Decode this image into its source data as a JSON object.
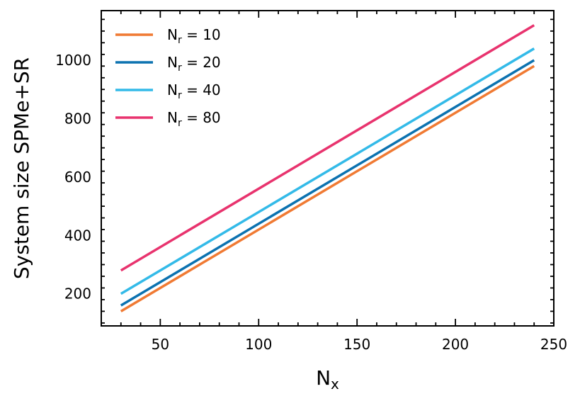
{
  "chart_data": {
    "type": "line",
    "xlabel": "N",
    "xlabel_sub": "x",
    "ylabel": "System size SPMe+SR",
    "xlim": [
      20,
      250
    ],
    "ylim": [
      90,
      1170
    ],
    "x_ticks": [
      50,
      100,
      150,
      200,
      250
    ],
    "y_ticks": [
      200,
      400,
      600,
      800,
      1000
    ],
    "x_tick_labels": [
      "50",
      "100",
      "150",
      "200",
      "250"
    ],
    "y_tick_labels": [
      "200",
      "400",
      "600",
      "800",
      "1000"
    ],
    "grid": false,
    "legend_position": "top-left",
    "series": [
      {
        "name_main": "N",
        "name_sub": "r",
        "name_rest": " = 10",
        "color": "#f07a33",
        "x": [
          30,
          240
        ],
        "y": [
          140,
          980
        ]
      },
      {
        "name_main": "N",
        "name_sub": "r",
        "name_rest": " = 20",
        "color": "#0b72b0",
        "x": [
          30,
          240
        ],
        "y": [
          160,
          1000
        ]
      },
      {
        "name_main": "N",
        "name_sub": "r",
        "name_rest": " = 40",
        "color": "#33bae8",
        "x": [
          30,
          240
        ],
        "y": [
          200,
          1040
        ]
      },
      {
        "name_main": "N",
        "name_sub": "r",
        "name_rest": " = 80",
        "color": "#e8336e",
        "x": [
          30,
          240
        ],
        "y": [
          280,
          1120
        ]
      }
    ]
  }
}
